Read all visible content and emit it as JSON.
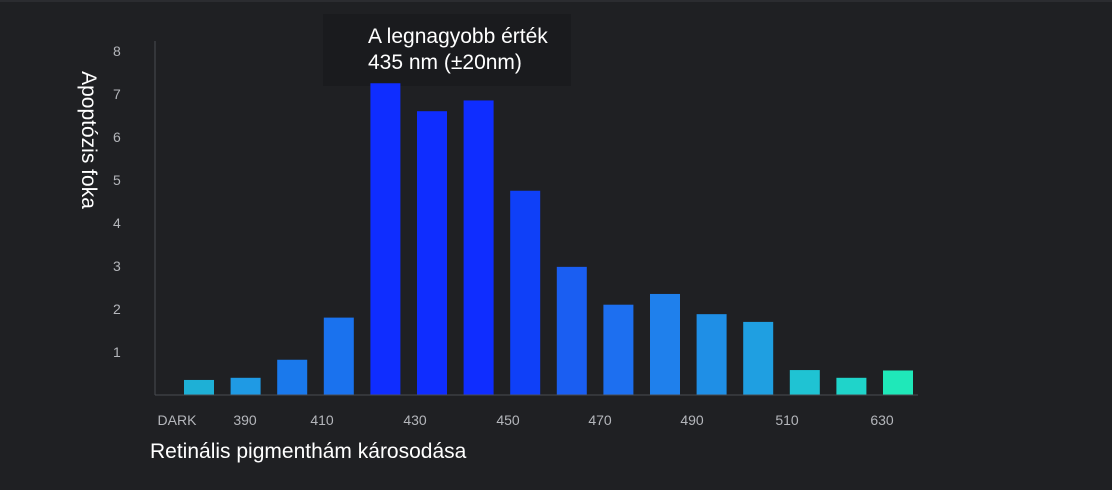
{
  "chart_data": {
    "type": "bar",
    "annotation": [
      "A legnagyobb érték",
      "435 nm (±20nm)"
    ],
    "xlabel": "Retinális pigmenthám károsodása",
    "ylabel": "Apoptózis foka",
    "ylim": [
      0,
      8
    ],
    "yticks": [
      1,
      2,
      3,
      4,
      5,
      6,
      7,
      8
    ],
    "x_tick_labels": [
      "DARK",
      "390",
      "410",
      "430",
      "450",
      "470",
      "490",
      "510",
      "630"
    ],
    "values": [
      0.35,
      0.4,
      0.82,
      1.8,
      7.25,
      6.6,
      6.85,
      4.75,
      2.98,
      2.1,
      2.35,
      1.88,
      1.7,
      0.58,
      0.4,
      0.57
    ],
    "colors": [
      "#1eb0d6",
      "#1f9ae4",
      "#1a79ec",
      "#1a72ee",
      "#0f2dff",
      "#0f2dff",
      "#0f2dff",
      "#0f40f8",
      "#1a5ef2",
      "#1d6ff0",
      "#1f80ec",
      "#1f8fe6",
      "#1f9fe1",
      "#1fc3d3",
      "#1fd4ca",
      "#1fe8b9"
    ],
    "grid": false
  }
}
